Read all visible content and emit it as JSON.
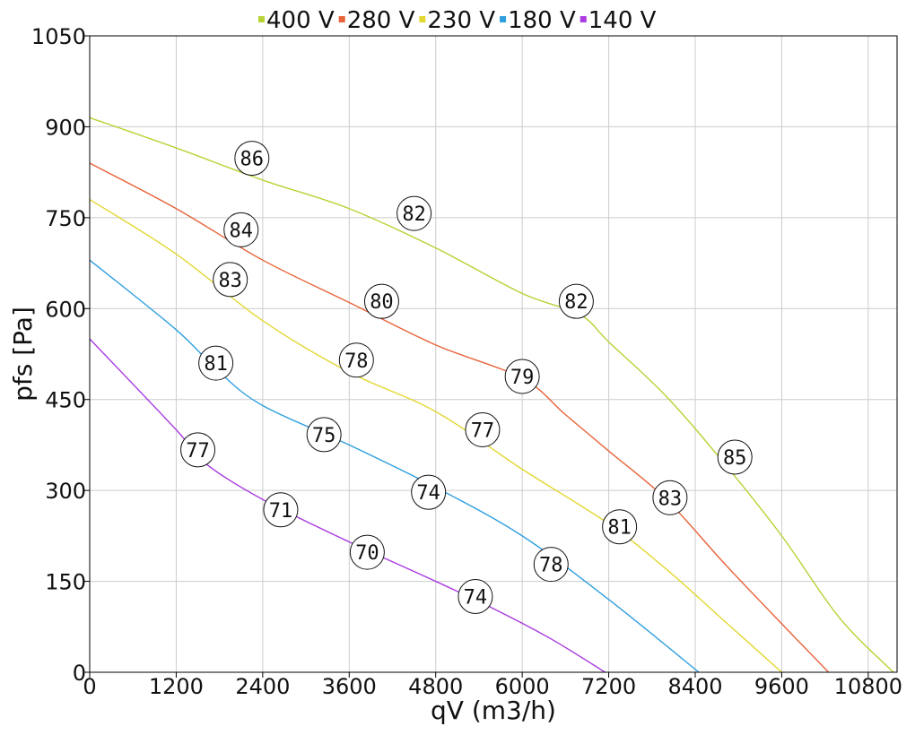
{
  "chart_data": {
    "type": "line",
    "xlabel": "qV (m3/h)",
    "ylabel": "pfs [Pa]",
    "xlim": [
      0,
      11200
    ],
    "ylim": [
      0,
      1050
    ],
    "x_ticks": [
      0,
      1200,
      2400,
      3600,
      4800,
      6000,
      7200,
      8400,
      9600,
      10800
    ],
    "y_ticks": [
      0,
      150,
      300,
      450,
      600,
      750,
      900,
      1050
    ],
    "grid": true,
    "legend_position": "top",
    "series": [
      {
        "name": "400 V",
        "color": "#b5d334",
        "points": [
          [
            0,
            915
          ],
          [
            1200,
            865
          ],
          [
            2400,
            812
          ],
          [
            3600,
            765
          ],
          [
            4800,
            700
          ],
          [
            6000,
            625
          ],
          [
            6800,
            590
          ],
          [
            7200,
            545
          ],
          [
            8000,
            455
          ],
          [
            8800,
            345
          ],
          [
            9600,
            225
          ],
          [
            10400,
            90
          ],
          [
            11150,
            0
          ]
        ],
        "labels": [
          {
            "x": 2250,
            "y": 848,
            "text": "86"
          },
          {
            "x": 4500,
            "y": 757,
            "text": "82"
          },
          {
            "x": 6750,
            "y": 612,
            "text": "82"
          },
          {
            "x": 8950,
            "y": 355,
            "text": "85"
          }
        ]
      },
      {
        "name": "280 V",
        "color": "#e8633a",
        "points": [
          [
            0,
            840
          ],
          [
            1200,
            765
          ],
          [
            2400,
            680
          ],
          [
            3600,
            610
          ],
          [
            4800,
            540
          ],
          [
            6000,
            485
          ],
          [
            6600,
            425
          ],
          [
            7200,
            365
          ],
          [
            8000,
            285
          ],
          [
            8800,
            180
          ],
          [
            9600,
            80
          ],
          [
            10250,
            0
          ]
        ],
        "labels": [
          {
            "x": 2100,
            "y": 730,
            "text": "84"
          },
          {
            "x": 4050,
            "y": 612,
            "text": "80"
          },
          {
            "x": 6000,
            "y": 488,
            "text": "79"
          },
          {
            "x": 8050,
            "y": 288,
            "text": "83"
          }
        ]
      },
      {
        "name": "230 V",
        "color": "#e3d730",
        "points": [
          [
            0,
            780
          ],
          [
            1200,
            690
          ],
          [
            2400,
            580
          ],
          [
            3600,
            495
          ],
          [
            4800,
            430
          ],
          [
            6000,
            335
          ],
          [
            7200,
            245
          ],
          [
            8000,
            170
          ],
          [
            8800,
            85
          ],
          [
            9600,
            0
          ]
        ],
        "labels": [
          {
            "x": 1950,
            "y": 648,
            "text": "83"
          },
          {
            "x": 3700,
            "y": 515,
            "text": "78"
          },
          {
            "x": 5450,
            "y": 400,
            "text": "77"
          },
          {
            "x": 7350,
            "y": 240,
            "text": "81"
          }
        ]
      },
      {
        "name": "180 V",
        "color": "#2f9fe0",
        "points": [
          [
            0,
            680
          ],
          [
            1200,
            565
          ],
          [
            1800,
            495
          ],
          [
            2400,
            440
          ],
          [
            3600,
            375
          ],
          [
            4800,
            305
          ],
          [
            6000,
            225
          ],
          [
            7200,
            120
          ],
          [
            8450,
            0
          ]
        ],
        "labels": [
          {
            "x": 1750,
            "y": 510,
            "text": "81"
          },
          {
            "x": 3250,
            "y": 392,
            "text": "75"
          },
          {
            "x": 4700,
            "y": 297,
            "text": "74"
          },
          {
            "x": 6400,
            "y": 178,
            "text": "78"
          }
        ]
      },
      {
        "name": "140 V",
        "color": "#a93be0",
        "points": [
          [
            0,
            550
          ],
          [
            1200,
            400
          ],
          [
            1600,
            345
          ],
          [
            2400,
            285
          ],
          [
            3600,
            215
          ],
          [
            4800,
            150
          ],
          [
            5600,
            105
          ],
          [
            6400,
            55
          ],
          [
            7150,
            0
          ]
        ],
        "labels": [
          {
            "x": 1500,
            "y": 367,
            "text": "77"
          },
          {
            "x": 2650,
            "y": 268,
            "text": "71"
          },
          {
            "x": 3850,
            "y": 198,
            "text": "70"
          },
          {
            "x": 5350,
            "y": 125,
            "text": "74"
          }
        ]
      }
    ]
  }
}
